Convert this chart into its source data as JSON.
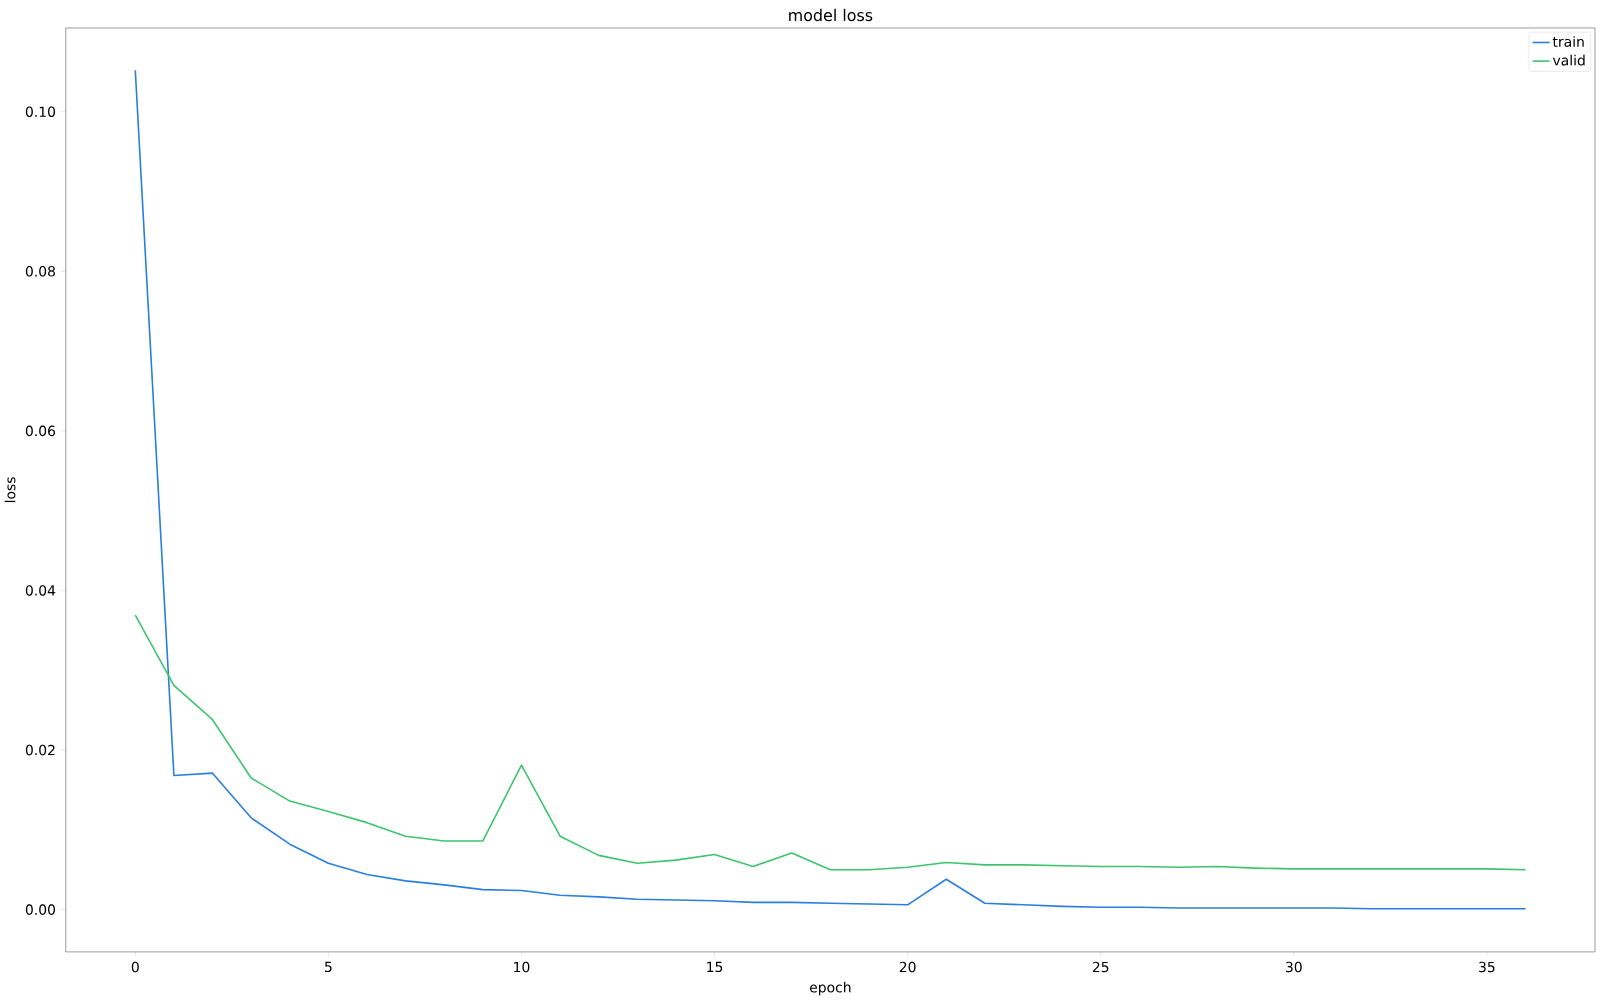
{
  "chart_data": {
    "type": "line",
    "title": "model loss",
    "xlabel": "epoch",
    "ylabel": "loss",
    "x": [
      0,
      1,
      2,
      3,
      4,
      5,
      6,
      7,
      8,
      9,
      10,
      11,
      12,
      13,
      14,
      15,
      16,
      17,
      18,
      19,
      20,
      21,
      22,
      23,
      24,
      25,
      26,
      27,
      28,
      29,
      30,
      31,
      32,
      33,
      34,
      35,
      36
    ],
    "series": [
      {
        "name": "train",
        "color": "#2a7fde",
        "values": [
          0.1052,
          0.0168,
          0.0171,
          0.0115,
          0.0082,
          0.0058,
          0.0044,
          0.0036,
          0.0031,
          0.0025,
          0.0024,
          0.0018,
          0.0016,
          0.0013,
          0.0012,
          0.0011,
          0.0009,
          0.0009,
          0.0008,
          0.0007,
          0.0006,
          0.0038,
          0.0008,
          0.0006,
          0.0004,
          0.0003,
          0.0003,
          0.0002,
          0.0002,
          0.0002,
          0.0002,
          0.0002,
          0.0001,
          0.0001,
          0.0001,
          0.0001,
          0.0001
        ]
      },
      {
        "name": "valid",
        "color": "#3ec46d",
        "values": [
          0.0369,
          0.0281,
          0.0238,
          0.0165,
          0.0136,
          0.0123,
          0.0109,
          0.0092,
          0.0086,
          0.0086,
          0.0181,
          0.0092,
          0.0068,
          0.0058,
          0.0062,
          0.0069,
          0.0054,
          0.0071,
          0.005,
          0.005,
          0.0053,
          0.0059,
          0.0056,
          0.0056,
          0.0055,
          0.0054,
          0.0054,
          0.0053,
          0.0054,
          0.0052,
          0.0051,
          0.0051,
          0.0051,
          0.0051,
          0.0051,
          0.0051,
          0.005
        ]
      }
    ],
    "xlim": [
      -1.8,
      37.8
    ],
    "ylim": [
      -0.0053,
      0.1105
    ],
    "xticks": [
      0,
      5,
      10,
      15,
      20,
      25,
      30,
      35
    ],
    "yticks": [
      {
        "value": 0,
        "label": "0.00"
      },
      {
        "value": 0.02,
        "label": "0.02"
      },
      {
        "value": 0.04,
        "label": "0.04"
      },
      {
        "value": 0.06,
        "label": "0.06"
      },
      {
        "value": 0.08,
        "label": "0.08"
      },
      {
        "value": 0.1,
        "label": "0.10"
      }
    ],
    "grid": false,
    "legend": "top right",
    "marker": "none",
    "line_style": "solid"
  }
}
